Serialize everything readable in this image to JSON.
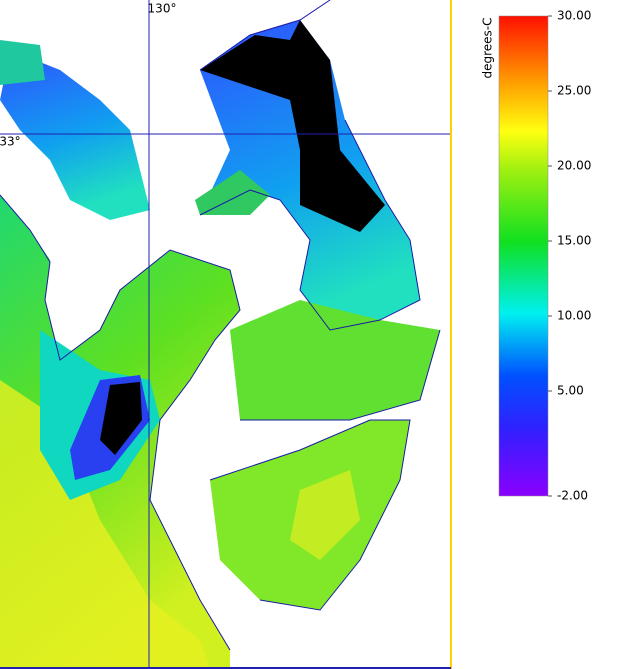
{
  "map": {
    "lon_label": "130°",
    "lat_label": "33°",
    "colorbar": {
      "title": "degrees-C",
      "range": [
        -2,
        30
      ],
      "ticks": [
        {
          "value": 30,
          "label": "30.00"
        },
        {
          "value": 25,
          "label": "25.00"
        },
        {
          "value": 20,
          "label": "20.00"
        },
        {
          "value": 15,
          "label": "15.00"
        },
        {
          "value": 10,
          "label": "10.00"
        },
        {
          "value": 5,
          "label": "5.00"
        },
        {
          "value": -2,
          "label": "-2.00"
        }
      ]
    }
  }
}
